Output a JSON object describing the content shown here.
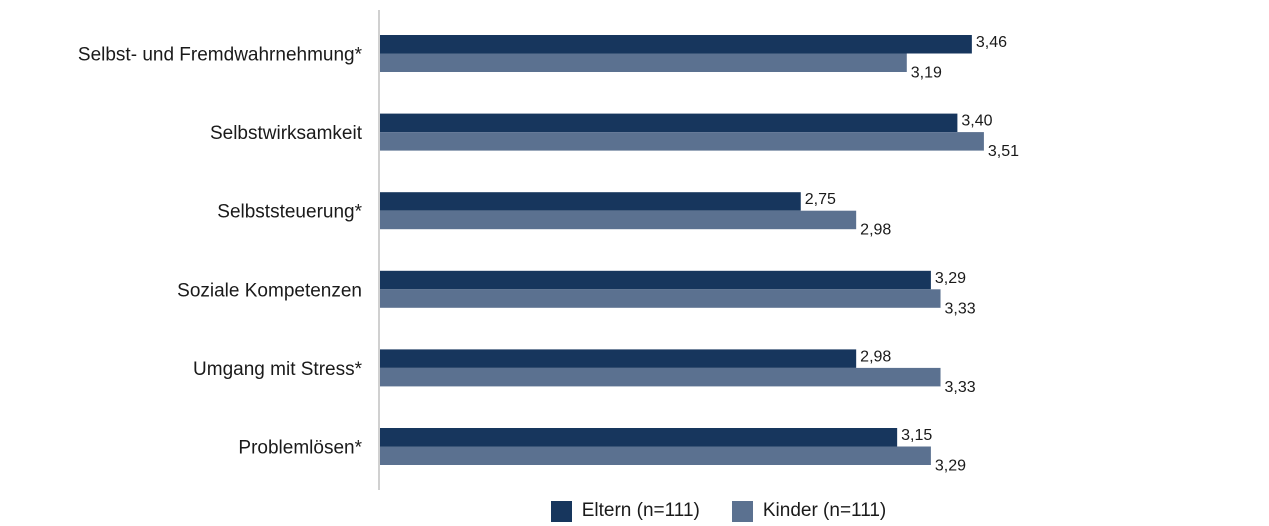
{
  "chart_data": {
    "type": "bar",
    "orientation": "horizontal",
    "categories": [
      "Selbst- und Fremdwahrnehmung*",
      "Selbstwirksamkeit",
      "Selbststeuerung*",
      "Soziale Kompetenzen",
      "Umgang mit Stress*",
      "Problemlösen*"
    ],
    "series": [
      {
        "name": "Eltern (n=111)",
        "color": "#17365d",
        "values": [
          3.46,
          3.4,
          2.75,
          3.29,
          2.98,
          3.15
        ],
        "labels": [
          "3,46",
          "3,40",
          "2,75",
          "3,29",
          "2,98",
          "3,15"
        ]
      },
      {
        "name": "Kinder (n=111)",
        "color": "#5b7190",
        "values": [
          3.19,
          3.51,
          2.98,
          3.33,
          3.33,
          3.29
        ],
        "labels": [
          "3,19",
          "3,51",
          "2,98",
          "3,33",
          "3,33",
          "3,29"
        ]
      }
    ],
    "xlim": [
      1,
      4.5
    ],
    "grid": false,
    "axis_color": "#d0d0d0",
    "legend_position": "bottom"
  }
}
